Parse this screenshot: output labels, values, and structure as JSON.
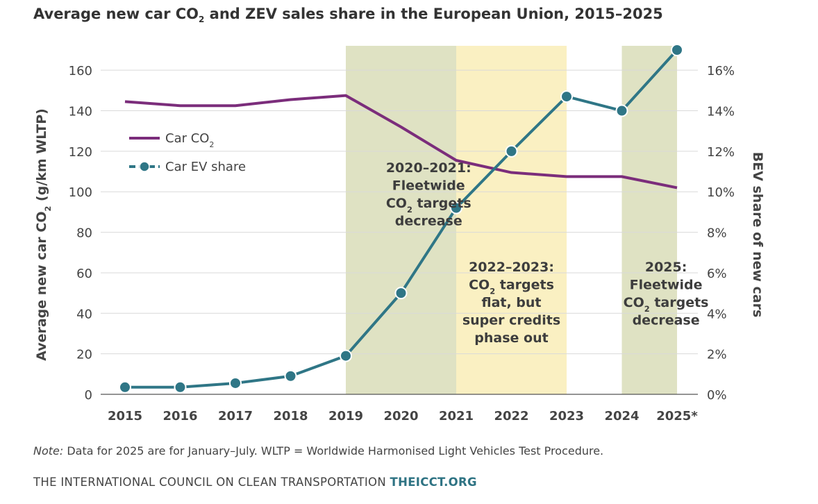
{
  "title": {
    "before": "Average new car CO",
    "sub": "2",
    "after": " and ZEV sales share in the European Union, 2015–2025"
  },
  "note": {
    "label": "Note:",
    "text": " Data for 2025 are for January–July. WLTP = Worldwide Harmonised Light Vehicles Test Procedure."
  },
  "footer": {
    "org": "THE INTERNATIONAL COUNCIL ON CLEAN TRANSPORTATION ",
    "site": "THEICCT.ORG"
  },
  "colors": {
    "co2": "#7b2d7b",
    "ev": "#2f7686",
    "band_green": "#dfe2c3",
    "band_yellow": "#faf0c2"
  },
  "chart_data": {
    "type": "line",
    "categories": [
      "2015",
      "2016",
      "2017",
      "2018",
      "2019",
      "2020",
      "2021",
      "2022",
      "2023",
      "2024",
      "2025*"
    ],
    "y_left": {
      "label_before": "Average new car CO",
      "label_sub": "2",
      "label_after": " (g/km WLTP)",
      "lim": [
        0,
        170
      ],
      "ticks": [
        "0",
        "20",
        "40",
        "60",
        "80",
        "100",
        "120",
        "140",
        "160"
      ]
    },
    "y_right": {
      "label": "BEV share of new cars",
      "lim": [
        0,
        17
      ],
      "ticks": [
        "0%",
        "2%",
        "4%",
        "6%",
        "8%",
        "10%",
        "12%",
        "14%",
        "16%"
      ]
    },
    "series": [
      {
        "name": "Car CO2",
        "legend_before": "Car CO",
        "legend_sub": "2",
        "axis": "left",
        "markers": false,
        "values": [
          144.5,
          142.5,
          142.5,
          145.5,
          147.5,
          132,
          115.5,
          109.5,
          107.5,
          107.5,
          102
        ]
      },
      {
        "name": "Car EV share",
        "legend_label": "Car EV share",
        "axis": "right",
        "markers": true,
        "values": [
          0.35,
          0.35,
          0.55,
          0.9,
          1.9,
          5.0,
          9.2,
          12.0,
          14.7,
          14.0,
          17.0
        ]
      }
    ],
    "bands": [
      {
        "from": "2019",
        "to": "2021",
        "color": "green"
      },
      {
        "from": "2021",
        "to": "2023",
        "color": "yellow"
      },
      {
        "from": "2024",
        "to": "2025*",
        "color": "green"
      }
    ],
    "annotations": [
      {
        "lines": [
          {
            "t": "2020–2021:"
          },
          {
            "t": "Fleetwide"
          },
          {
            "t": "CO",
            "sub": "2",
            "after": " targets"
          },
          {
            "t": "decrease"
          }
        ],
        "at": "2020.5"
      },
      {
        "lines": [
          {
            "t": "2022–2023:"
          },
          {
            "t": "CO",
            "sub": "2",
            "after": " targets"
          },
          {
            "t": "flat, but"
          },
          {
            "t": "super credits"
          },
          {
            "t": "phase out"
          }
        ],
        "at": "2022"
      },
      {
        "lines": [
          {
            "t": "2025:"
          },
          {
            "t": "Fleetwide"
          },
          {
            "t": "CO",
            "sub": "2",
            "after": " targets"
          },
          {
            "t": "decrease"
          }
        ],
        "at": "2024.8"
      }
    ],
    "grid": true,
    "legend": "top-left"
  }
}
